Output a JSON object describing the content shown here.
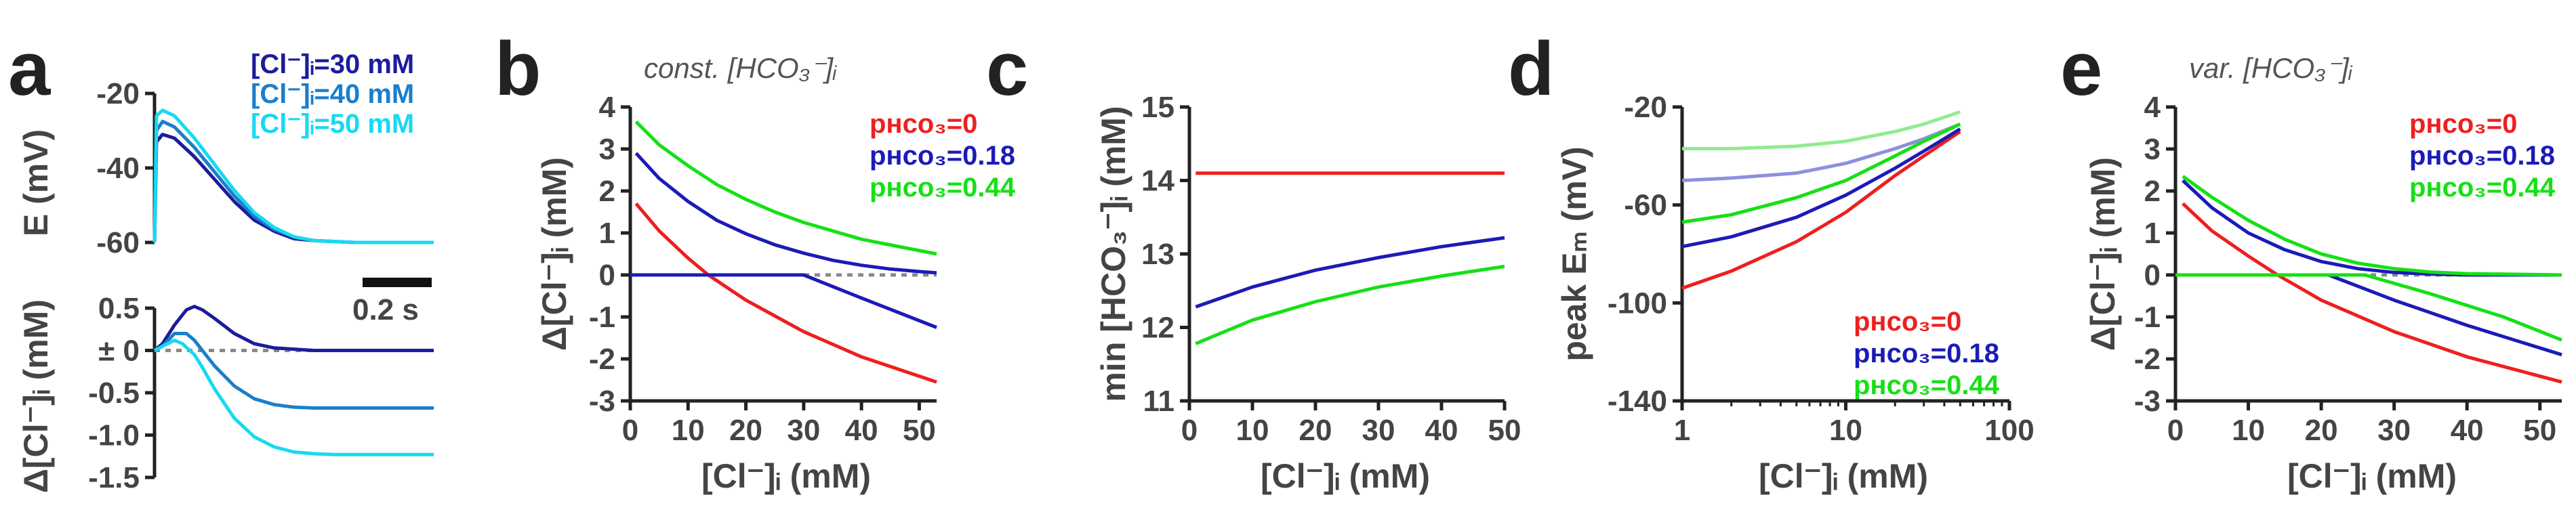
{
  "figure": {
    "panel_letters": [
      "a",
      "b",
      "c",
      "d",
      "e"
    ],
    "colors": {
      "cl30": "#1c1c9c",
      "cl40": "#1a7fcc",
      "cl50": "#17d9f2",
      "p0": "#ee1f1f",
      "p018": "#1b1bb8",
      "p044": "#15e015",
      "p018_light": "#8f8fe0",
      "p044_light": "#90ec90",
      "ref": "#888888"
    }
  },
  "chart_data": [
    {
      "id": "a_top",
      "type": "line",
      "ylabel": "E (mV)",
      "ylim": [
        -60,
        -20
      ],
      "yticks": [
        "-20",
        "-40",
        "-60"
      ],
      "scalebar_label": "0.2 s",
      "legend": [
        "[Cl⁻]ᵢ=30 mM",
        "[Cl⁻]ᵢ=40 mM",
        "[Cl⁻]ᵢ=50 mM"
      ],
      "series": [
        {
          "name": "[Cl⁻]ᵢ=30 mM",
          "color": "#1c1c9c",
          "x": [
            0,
            0.005,
            0.02,
            0.05,
            0.1,
            0.15,
            0.2,
            0.25,
            0.3,
            0.35,
            0.4,
            0.5,
            0.6,
            0.7
          ],
          "y": [
            -60,
            -33,
            -31,
            -32,
            -37,
            -43,
            -49,
            -54,
            -57,
            -59,
            -59.5,
            -60,
            -60,
            -60
          ]
        },
        {
          "name": "[Cl⁻]ᵢ=40 mM",
          "color": "#1a7fcc",
          "x": [
            0,
            0.005,
            0.02,
            0.05,
            0.1,
            0.15,
            0.2,
            0.25,
            0.3,
            0.35,
            0.4,
            0.5,
            0.6,
            0.7
          ],
          "y": [
            -60,
            -30,
            -27.5,
            -29,
            -34.5,
            -41,
            -47.5,
            -53,
            -56.5,
            -58.5,
            -59.5,
            -60,
            -60,
            -60
          ]
        },
        {
          "name": "[Cl⁻]ᵢ=50 mM",
          "color": "#17d9f2",
          "x": [
            0,
            0.005,
            0.02,
            0.05,
            0.1,
            0.15,
            0.2,
            0.25,
            0.3,
            0.35,
            0.4,
            0.5,
            0.6,
            0.7
          ],
          "y": [
            -60,
            -26,
            -24.5,
            -26,
            -32,
            -39,
            -46,
            -52,
            -56,
            -58.5,
            -59.5,
            -60,
            -60,
            -60
          ]
        }
      ]
    },
    {
      "id": "a_bottom",
      "type": "line",
      "ylabel": "Δ[Cl⁻]ᵢ (mM)",
      "ylim": [
        -1.5,
        0.5
      ],
      "yticks": [
        "0.5",
        "± 0",
        "-0.5",
        "-1.0",
        "-1.5"
      ],
      "series": [
        {
          "name": "[Cl⁻]ᵢ=30 mM",
          "color": "#1c1c9c",
          "x": [
            0,
            0.02,
            0.05,
            0.08,
            0.1,
            0.12,
            0.15,
            0.2,
            0.25,
            0.3,
            0.4,
            0.5,
            0.6,
            0.7
          ],
          "y": [
            0,
            0.08,
            0.3,
            0.48,
            0.52,
            0.48,
            0.38,
            0.2,
            0.08,
            0.03,
            0,
            0,
            0,
            0
          ]
        },
        {
          "name": "[Cl⁻]ᵢ=40 mM",
          "color": "#1a7fcc",
          "x": [
            0,
            0.02,
            0.05,
            0.08,
            0.1,
            0.12,
            0.15,
            0.2,
            0.25,
            0.3,
            0.35,
            0.4,
            0.5,
            0.6,
            0.7
          ],
          "y": [
            0,
            0.05,
            0.2,
            0.2,
            0.12,
            0.0,
            -0.18,
            -0.42,
            -0.57,
            -0.64,
            -0.67,
            -0.68,
            -0.68,
            -0.68,
            -0.68
          ]
        },
        {
          "name": "[Cl⁻]ᵢ=50 mM",
          "color": "#17d9f2",
          "x": [
            0,
            0.02,
            0.05,
            0.07,
            0.1,
            0.12,
            0.15,
            0.2,
            0.25,
            0.3,
            0.35,
            0.4,
            0.45,
            0.5,
            0.6,
            0.7
          ],
          "y": [
            0,
            0.05,
            0.12,
            0.08,
            -0.05,
            -0.2,
            -0.45,
            -0.8,
            -1.02,
            -1.14,
            -1.2,
            -1.22,
            -1.23,
            -1.23,
            -1.23,
            -1.23
          ]
        }
      ]
    },
    {
      "id": "b",
      "type": "line",
      "title": "const. [HCO₃⁻]ᵢ",
      "xlabel": "[Cl⁻]ᵢ (mM)",
      "ylabel": "Δ[Cl⁻]ᵢ (mM)",
      "xlim": [
        0,
        53
      ],
      "ylim": [
        -3,
        4
      ],
      "xticks": [
        "0",
        "10",
        "20",
        "30",
        "40",
        "50"
      ],
      "yticks": [
        "4",
        "3",
        "2",
        "1",
        "0",
        "-1",
        "-2",
        "-3"
      ],
      "legend": [
        "pʜᴄᴏ₃=0",
        "pʜᴄᴏ₃=0.18",
        "pʜᴄᴏ₃=0.44"
      ],
      "series": [
        {
          "name": "pHCO3=0",
          "color": "#ee1f1f",
          "x": [
            1,
            5,
            10,
            13.5,
            20,
            30,
            40,
            53
          ],
          "y": [
            1.7,
            1.05,
            0.4,
            0.0,
            -0.6,
            -1.35,
            -1.95,
            -2.55
          ]
        },
        {
          "name": "pHCO3=0.18",
          "color": "#1b1bb8",
          "x": [
            1,
            5,
            10,
            15,
            20,
            25,
            30,
            35,
            40,
            45,
            50,
            53
          ],
          "y": [
            2.9,
            2.3,
            1.75,
            1.3,
            0.98,
            0.72,
            0.52,
            0.35,
            0.23,
            0.14,
            0.08,
            0.05
          ]
        },
        {
          "name": "pHCO3=0.18 (Δ<0 branch)",
          "color": "#1b1bb8",
          "x": [
            0,
            30,
            40,
            53
          ],
          "y": [
            0,
            0,
            -0.55,
            -1.25
          ]
        },
        {
          "name": "pHCO3=0.44",
          "color": "#15e015",
          "x": [
            1,
            5,
            10,
            15,
            20,
            25,
            30,
            40,
            53
          ],
          "y": [
            3.65,
            3.1,
            2.6,
            2.15,
            1.8,
            1.5,
            1.25,
            0.85,
            0.5
          ]
        }
      ],
      "reference_line": {
        "y": 0,
        "style": "dotted",
        "color": "#888888"
      }
    },
    {
      "id": "c",
      "type": "line",
      "xlabel": "[Cl⁻]ᵢ (mM)",
      "ylabel": "min [HCO₃⁻]ᵢ (mM)",
      "xlim": [
        0,
        50
      ],
      "ylim": [
        11,
        15
      ],
      "xticks": [
        "0",
        "10",
        "20",
        "30",
        "40",
        "50"
      ],
      "yticks": [
        "15",
        "14",
        "13",
        "12",
        "11"
      ],
      "series": [
        {
          "name": "pHCO3=0",
          "color": "#ee1f1f",
          "x": [
            1,
            50
          ],
          "y": [
            14.1,
            14.1
          ]
        },
        {
          "name": "pHCO3=0.18",
          "color": "#1b1bb8",
          "x": [
            1,
            10,
            20,
            30,
            40,
            50
          ],
          "y": [
            12.28,
            12.55,
            12.78,
            12.95,
            13.1,
            13.22
          ]
        },
        {
          "name": "pHCO3=0.44",
          "color": "#15e015",
          "x": [
            1,
            10,
            20,
            30,
            40,
            50
          ],
          "y": [
            11.78,
            12.1,
            12.35,
            12.55,
            12.7,
            12.83
          ]
        }
      ]
    },
    {
      "id": "d",
      "type": "line",
      "xscale": "log",
      "xlabel": "[Cl⁻]ᵢ (mM)",
      "ylabel": "peak Eₘ (mV)",
      "xlim": [
        1,
        100
      ],
      "ylim": [
        -140,
        -20
      ],
      "xticks": [
        "1",
        "10",
        "100"
      ],
      "yticks": [
        "-20",
        "-60",
        "-100",
        "-140"
      ],
      "legend": [
        "pʜᴄᴏ₃=0",
        "pʜᴄᴏ₃=0.18",
        "pʜᴄᴏ₃=0.44"
      ],
      "series": [
        {
          "name": "pHCO3=0",
          "color": "#ee1f1f",
          "x": [
            1,
            2,
            5,
            10,
            20,
            30,
            50
          ],
          "y": [
            -94,
            -87,
            -75,
            -63,
            -48,
            -40,
            -30
          ]
        },
        {
          "name": "pHCO3=0.18",
          "color": "#1b1bb8",
          "x": [
            1,
            2,
            5,
            10,
            20,
            30,
            50
          ],
          "y": [
            -77,
            -73,
            -65,
            -56,
            -45,
            -38,
            -29
          ]
        },
        {
          "name": "pHCO3=0.44",
          "color": "#15e015",
          "x": [
            1,
            2,
            5,
            10,
            20,
            30,
            50
          ],
          "y": [
            -67,
            -64,
            -57,
            -50,
            -40,
            -34,
            -27
          ]
        },
        {
          "name": "pHCO3=0.18 (light)",
          "color": "#8f8fe0",
          "x": [
            1,
            2,
            5,
            10,
            20,
            30,
            50
          ],
          "y": [
            -50,
            -49,
            -47,
            -43,
            -37,
            -33,
            -27
          ]
        },
        {
          "name": "pHCO3=0.44 (light)",
          "color": "#90ec90",
          "x": [
            1,
            2,
            5,
            10,
            20,
            30,
            50
          ],
          "y": [
            -37,
            -37,
            -36,
            -34,
            -30,
            -27,
            -22
          ]
        }
      ]
    },
    {
      "id": "e",
      "type": "line",
      "title": "var. [HCO₃⁻]ᵢ",
      "xlabel": "[Cl⁻]ᵢ (mM)",
      "ylabel": "Δ[Cl⁻]ᵢ (mM)",
      "xlim": [
        0,
        53
      ],
      "ylim": [
        -3,
        4
      ],
      "xticks": [
        "0",
        "10",
        "20",
        "30",
        "40",
        "50"
      ],
      "yticks": [
        "4",
        "3",
        "2",
        "1",
        "0",
        "-1",
        "-2",
        "-3"
      ],
      "legend": [
        "pʜᴄᴏ₃=0",
        "pʜᴄᴏ₃=0.18",
        "pʜᴄᴏ₃=0.44"
      ],
      "series": [
        {
          "name": "pHCO3=0",
          "color": "#ee1f1f",
          "x": [
            1,
            5,
            10,
            14,
            20,
            30,
            40,
            53
          ],
          "y": [
            1.7,
            1.05,
            0.45,
            0.0,
            -0.6,
            -1.35,
            -1.95,
            -2.55
          ]
        },
        {
          "name": "pHCO3=0.18",
          "color": "#1b1bb8",
          "x": [
            1,
            5,
            10,
            15,
            20,
            25,
            30,
            35,
            40,
            53
          ],
          "y": [
            2.25,
            1.6,
            1.0,
            0.6,
            0.32,
            0.15,
            0.06,
            0.02,
            0,
            0
          ]
        },
        {
          "name": "pHCO3=0.18 (Δ<0 branch)",
          "color": "#1b1bb8",
          "x": [
            0,
            21,
            30,
            40,
            53
          ],
          "y": [
            0,
            0,
            -0.6,
            -1.2,
            -1.9
          ]
        },
        {
          "name": "pHCO3=0.44",
          "color": "#15e015",
          "x": [
            1,
            5,
            10,
            15,
            20,
            25,
            30,
            35,
            40,
            53
          ],
          "y": [
            2.35,
            1.85,
            1.3,
            0.85,
            0.5,
            0.28,
            0.15,
            0.07,
            0.03,
            0
          ]
        },
        {
          "name": "pHCO3=0.44 (Δ<0 branch)",
          "color": "#15e015",
          "x": [
            0,
            26,
            35,
            45,
            53
          ],
          "y": [
            0,
            0,
            -0.45,
            -1.0,
            -1.55
          ]
        }
      ],
      "reference_line": {
        "y": 0,
        "style": "dotted",
        "color": "#888888"
      }
    }
  ]
}
